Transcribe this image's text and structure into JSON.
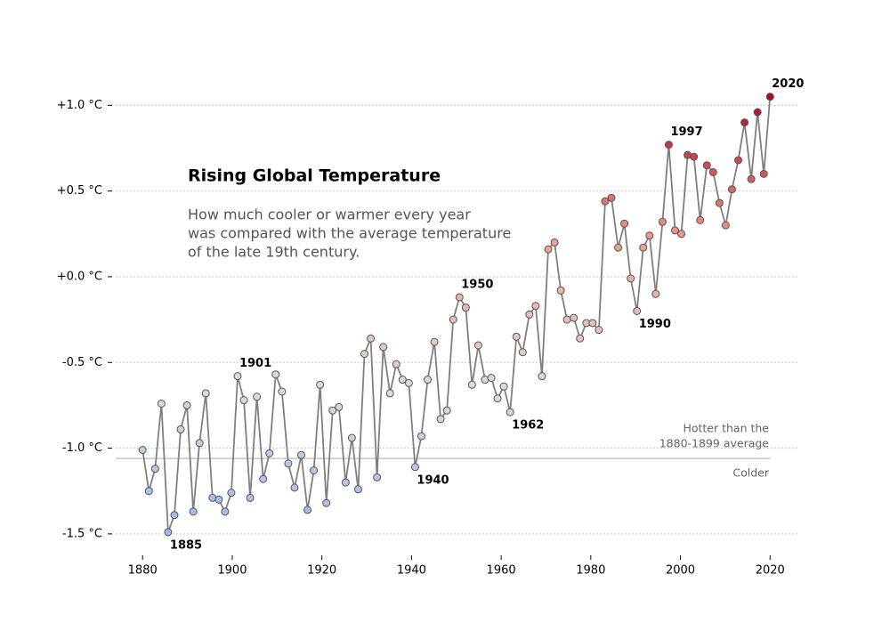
{
  "chart_data": {
    "type": "scatter-line",
    "title": "Rising Global Temperature",
    "subtitle": [
      "How much cooler or warmer every year",
      "was compared with the average temperature",
      "of the late 19th century."
    ],
    "x": [
      1880.0,
      1881.4,
      1882.8,
      1884.2,
      1885.7,
      1887.1,
      1888.5,
      1889.9,
      1891.3,
      1892.7,
      1894.1,
      1895.6,
      1897.0,
      1898.4,
      1899.8,
      1901.2,
      1902.6,
      1904.0,
      1905.5,
      1906.9,
      1908.3,
      1909.7,
      1911.1,
      1912.5,
      1913.9,
      1915.4,
      1916.8,
      1918.2,
      1919.6,
      1921.0,
      1922.4,
      1923.8,
      1925.3,
      1926.7,
      1928.1,
      1929.5,
      1930.9,
      1932.3,
      1933.7,
      1935.2,
      1936.6,
      1938.0,
      1939.4,
      1940.8,
      1942.2,
      1943.6,
      1945.1,
      1946.5,
      1947.9,
      1949.3,
      1950.7,
      1952.1,
      1953.5,
      1954.9,
      1956.4,
      1957.8,
      1959.2,
      1960.6,
      1962.0,
      1963.4,
      1964.8,
      1966.3,
      1967.7,
      1969.1,
      1970.5,
      1971.9,
      1973.3,
      1974.7,
      1976.2,
      1977.6,
      1979.0,
      1980.4,
      1981.8,
      1983.2,
      1984.6,
      1986.1,
      1987.5,
      1988.9,
      1990.3,
      1991.7,
      1993.1,
      1994.5,
      1996.0,
      1997.4,
      1998.8,
      2000.2,
      2001.6,
      2003.0,
      2004.4,
      2005.9,
      2007.3,
      2008.7,
      2010.1,
      2011.5,
      2012.9,
      2014.3,
      2015.8,
      2017.2,
      2018.6,
      2020.0
    ],
    "values": [
      -1.01,
      -1.25,
      -1.12,
      -0.74,
      -1.49,
      -1.39,
      -0.89,
      -0.75,
      -1.37,
      -0.97,
      -0.68,
      -1.29,
      -1.3,
      -1.37,
      -1.26,
      -0.58,
      -0.72,
      -1.29,
      -0.7,
      -1.18,
      -1.03,
      -0.57,
      -0.67,
      -1.09,
      -1.23,
      -1.04,
      -1.36,
      -1.13,
      -0.63,
      -1.32,
      -0.78,
      -0.76,
      -1.2,
      -0.94,
      -1.24,
      -0.45,
      -0.36,
      -1.17,
      -0.41,
      -0.68,
      -0.51,
      -0.6,
      -0.62,
      -1.11,
      -0.93,
      -0.6,
      -0.38,
      -0.83,
      -0.78,
      -0.25,
      -0.12,
      -0.18,
      -0.63,
      -0.4,
      -0.6,
      -0.59,
      -0.71,
      -0.64,
      -0.79,
      -0.35,
      -0.44,
      -0.22,
      -0.17,
      -0.58,
      0.16,
      0.2,
      -0.08,
      -0.25,
      -0.24,
      -0.36,
      -0.27,
      -0.27,
      -0.31,
      0.44,
      0.46,
      0.17,
      0.31,
      -0.01,
      -0.2,
      0.17,
      0.24,
      -0.1,
      0.32,
      0.77,
      0.27,
      0.25,
      0.71,
      0.7,
      0.33,
      0.65,
      0.61,
      0.43,
      0.3,
      0.51,
      0.68,
      0.9,
      0.57,
      0.96,
      0.6,
      1.05
    ],
    "line_color": "#808080",
    "colormap": {
      "stops": [
        "#9ab8f2",
        "#dcdcdc",
        "#f0a088",
        "#b40426"
      ],
      "range": [
        -1.5,
        1.05
      ]
    },
    "xlim": [
      1874,
      2026.5
    ],
    "ylim": [
      -1.62,
      1.5
    ],
    "xticks": [
      1880,
      1900,
      1920,
      1940,
      1960,
      1980,
      2000,
      2020
    ],
    "yticks": [
      {
        "value": -1.5,
        "label": "-1.5 °C"
      },
      {
        "value": -1.0,
        "label": "-1.0 °C"
      },
      {
        "value": -0.5,
        "label": "-0.5 °C"
      },
      {
        "value": 0.0,
        "label": "+0.0 °C"
      },
      {
        "value": 0.5,
        "label": "+0.5 °C"
      },
      {
        "value": 1.0,
        "label": "+1.0 °C"
      }
    ],
    "grid": true,
    "reference_line": {
      "value": -1.06,
      "above": [
        "Hotter than the",
        "1880-1899 average"
      ],
      "below": "Colder"
    },
    "annotations": [
      {
        "text": "1885",
        "point": 4,
        "position": "below"
      },
      {
        "text": "1901",
        "point": 15,
        "position": "above"
      },
      {
        "text": "1940",
        "point": 43,
        "position": "below"
      },
      {
        "text": "1950",
        "point": 50,
        "position": "above"
      },
      {
        "text": "1962",
        "point": 58,
        "position": "below"
      },
      {
        "text": "1990",
        "point": 78,
        "position": "below"
      },
      {
        "text": "1997",
        "point": 83,
        "position": "above"
      },
      {
        "text": "2020",
        "point": 99,
        "position": "above"
      }
    ]
  }
}
